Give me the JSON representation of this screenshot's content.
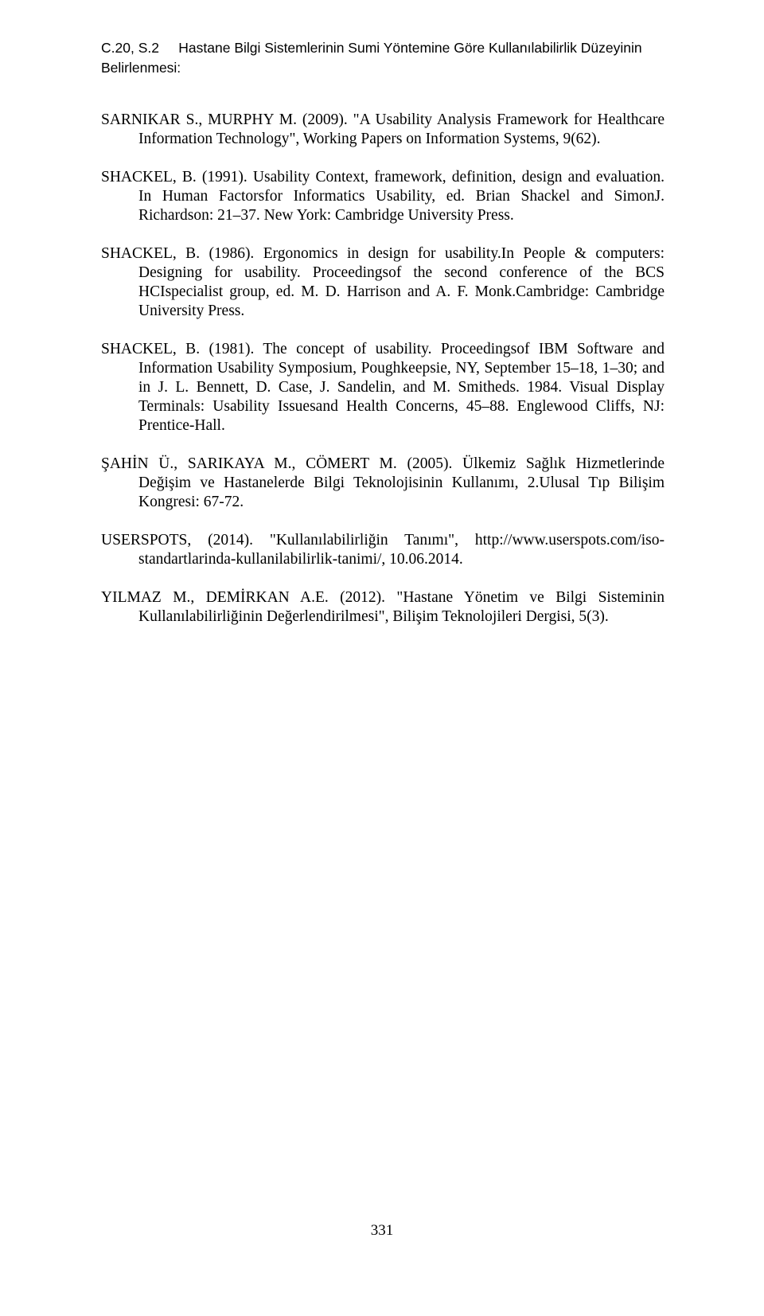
{
  "header": {
    "issue": "C.20, S.2",
    "title": "Hastane Bilgi Sistemlerinin Sumi Yöntemine Göre Kullanılabilirlik Düzeyinin Belirlenmesi:"
  },
  "references": [
    {
      "text": "SARNIKAR S., MURPHY M. (2009). \"A Usability Analysis Framework for Healthcare Information Technology\", Working Papers on Information Systems, 9(62)."
    },
    {
      "text": "SHACKEL, B. (1991). Usability Context, framework, definition, design and evaluation. In Human Factorsfor Informatics Usability, ed. Brian Shackel and SimonJ. Richardson: 21–37. New York: Cambridge University Press."
    },
    {
      "text": "SHACKEL, B. (1986). Ergonomics in design for usability.In People & computers: Designing for usability. Proceedingsof the second conference of the BCS HCIspecialist group, ed. M. D. Harrison and A. F. Monk.Cambridge: Cambridge University Press."
    },
    {
      "text": "SHACKEL, B. (1981). The concept of usability. Proceedingsof IBM Software and Information Usability Symposium, Poughkeepsie, NY, September 15–18, 1–30; and in J. L. Bennett, D. Case, J. Sandelin, and M. Smitheds. 1984. Visual Display Terminals: Usability Issuesand Health Concerns, 45–88. Englewood Cliffs, NJ: Prentice-Hall."
    },
    {
      "text": "ŞAHİN Ü., SARIKAYA M., CÖMERT M. (2005). Ülkemiz Sağlık Hizmetlerinde Değişim ve Hastanelerde Bilgi Teknolojisinin Kullanımı, 2.Ulusal Tıp Bilişim Kongresi: 67-72."
    },
    {
      "text": "USERSPOTS, (2014). \"Kullanılabilirliğin Tanımı\", http://www.userspots.com/iso-standartlarinda-kullanilabilirlik-tanimi/, 10.06.2014."
    },
    {
      "text": "YILMAZ M., DEMİRKAN A.E. (2012). \"Hastane Yönetim ve Bilgi Sisteminin Kullanılabilirliğinin Değerlendirilmesi\", Bilişim Teknolojileri Dergisi, 5(3)."
    }
  ],
  "page_number": "331"
}
